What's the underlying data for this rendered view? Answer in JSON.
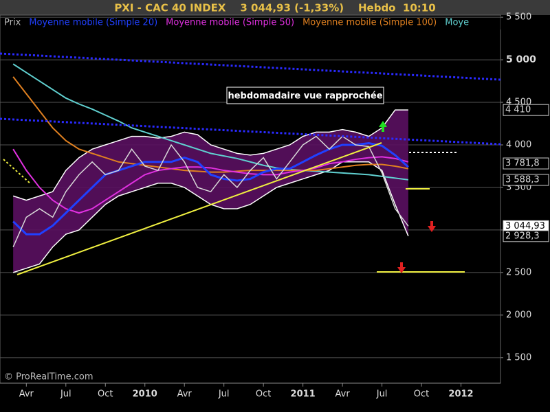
{
  "chart_data": {
    "type": "line",
    "title": "PXI - CAC 40 INDEX    3 044,93 (-1,33%)    Hebdo  10:10",
    "annotation": "hebdomadaire vue rapprochée",
    "copyright": "© ProRealTime.com",
    "x": [
      "2009-03",
      "2009-04",
      "2009-05",
      "2009-06",
      "2009-07",
      "2009-08",
      "2009-09",
      "2009-10",
      "2009-11",
      "2009-12",
      "2010-01",
      "2010-02",
      "2010-03",
      "2010-04",
      "2010-05",
      "2010-06",
      "2010-07",
      "2010-08",
      "2010-09",
      "2010-10",
      "2010-11",
      "2010-12",
      "2011-01",
      "2011-02",
      "2011-03",
      "2011-04",
      "2011-05",
      "2011-06",
      "2011-07",
      "2011-08",
      "2011-09"
    ],
    "xlim": [
      "2009-02",
      "2012-04"
    ],
    "xticks": [
      {
        "value": "2009-04",
        "label": "Avr"
      },
      {
        "value": "2009-07",
        "label": "Jul"
      },
      {
        "value": "2009-10",
        "label": "Oct"
      },
      {
        "value": "2010-01",
        "label": "2010"
      },
      {
        "value": "2010-04",
        "label": "Avr"
      },
      {
        "value": "2010-07",
        "label": "Jul"
      },
      {
        "value": "2010-10",
        "label": "Oct"
      },
      {
        "value": "2011-01",
        "label": "2011"
      },
      {
        "value": "2011-04",
        "label": "Avr"
      },
      {
        "value": "2011-07",
        "label": "Jul"
      },
      {
        "value": "2011-10",
        "label": "Oct"
      },
      {
        "value": "2012-01",
        "label": "2012"
      }
    ],
    "ylim": [
      1200,
      5525
    ],
    "yticks": [
      {
        "value": 1500,
        "label": "1 500"
      },
      {
        "value": 2000,
        "label": "2 000"
      },
      {
        "value": 2500,
        "label": "2 500"
      },
      {
        "value": 3000,
        "label": "3 000"
      },
      {
        "value": 3500,
        "label": "3 500"
      },
      {
        "value": 4000,
        "label": "4 000"
      },
      {
        "value": 4500,
        "label": "4 500"
      },
      {
        "value": 5000,
        "label": "5 000"
      },
      {
        "value": 5500,
        "label": "5 500"
      }
    ],
    "grid": true,
    "series": [
      {
        "name": "Prix",
        "color": "#d8d8d8",
        "values": [
          2800,
          3150,
          3250,
          3150,
          3450,
          3650,
          3800,
          3650,
          3700,
          3950,
          3750,
          3700,
          4000,
          3800,
          3500,
          3450,
          3650,
          3500,
          3700,
          3850,
          3600,
          3800,
          4000,
          4100,
          3950,
          4100,
          4000,
          3980,
          3670,
          3250,
          3045
        ]
      },
      {
        "name": "Moyenne mobile (Simple 20)",
        "color": "#2040ff",
        "values": [
          3100,
          2950,
          2950,
          3050,
          3200,
          3350,
          3500,
          3650,
          3700,
          3750,
          3800,
          3800,
          3800,
          3850,
          3800,
          3650,
          3600,
          3580,
          3600,
          3680,
          3720,
          3720,
          3800,
          3880,
          3950,
          4000,
          4000,
          4020,
          3990,
          3880,
          3740
        ]
      },
      {
        "name": "Moyenne mobile (Simple 50)",
        "color": "#e030e0",
        "values": [
          3950,
          3700,
          3500,
          3350,
          3250,
          3200,
          3250,
          3350,
          3450,
          3550,
          3650,
          3700,
          3720,
          3740,
          3740,
          3730,
          3700,
          3680,
          3660,
          3650,
          3650,
          3680,
          3700,
          3730,
          3780,
          3800,
          3830,
          3850,
          3860,
          3840,
          3800
        ]
      },
      {
        "name": "Moyenne mobile (Simple 100)",
        "color": "#e08020",
        "values": [
          4800,
          4600,
          4400,
          4200,
          4050,
          3950,
          3900,
          3850,
          3800,
          3780,
          3760,
          3740,
          3720,
          3700,
          3690,
          3680,
          3680,
          3690,
          3700,
          3700,
          3700,
          3700,
          3700,
          3700,
          3720,
          3740,
          3760,
          3770,
          3770,
          3750,
          3720
        ]
      },
      {
        "name": "Moye",
        "color": "#60d0d0",
        "values": [
          4950,
          4850,
          4750,
          4650,
          4550,
          4480,
          4420,
          4350,
          4280,
          4200,
          4150,
          4100,
          4050,
          4000,
          3950,
          3900,
          3870,
          3840,
          3800,
          3760,
          3730,
          3710,
          3700,
          3690,
          3680,
          3670,
          3660,
          3650,
          3630,
          3610,
          3590
        ]
      }
    ],
    "band_upper": [
      3400,
      3350,
      3400,
      3450,
      3700,
      3850,
      3950,
      4000,
      4050,
      4100,
      4100,
      4080,
      4100,
      4150,
      4120,
      4000,
      3950,
      3900,
      3880,
      3900,
      3950,
      4000,
      4100,
      4150,
      4150,
      4180,
      4150,
      4100,
      4200,
      4410,
      4410
    ],
    "band_lower": [
      2500,
      2550,
      2600,
      2800,
      2950,
      3000,
      3150,
      3300,
      3400,
      3450,
      3500,
      3550,
      3550,
      3500,
      3400,
      3300,
      3250,
      3250,
      3300,
      3400,
      3500,
      3550,
      3600,
      3650,
      3700,
      3800,
      3800,
      3800,
      3700,
      3300,
      2928
    ],
    "price_labels": [
      {
        "value": 4410,
        "label": "4 410"
      },
      {
        "value": 3781.8,
        "label": "3 781,8"
      },
      {
        "value": 3588.3,
        "label": "3 588,3"
      },
      {
        "value": 3044.93,
        "label": "3 044,93"
      },
      {
        "value": 2928.3,
        "label": "2 928,3"
      }
    ]
  }
}
